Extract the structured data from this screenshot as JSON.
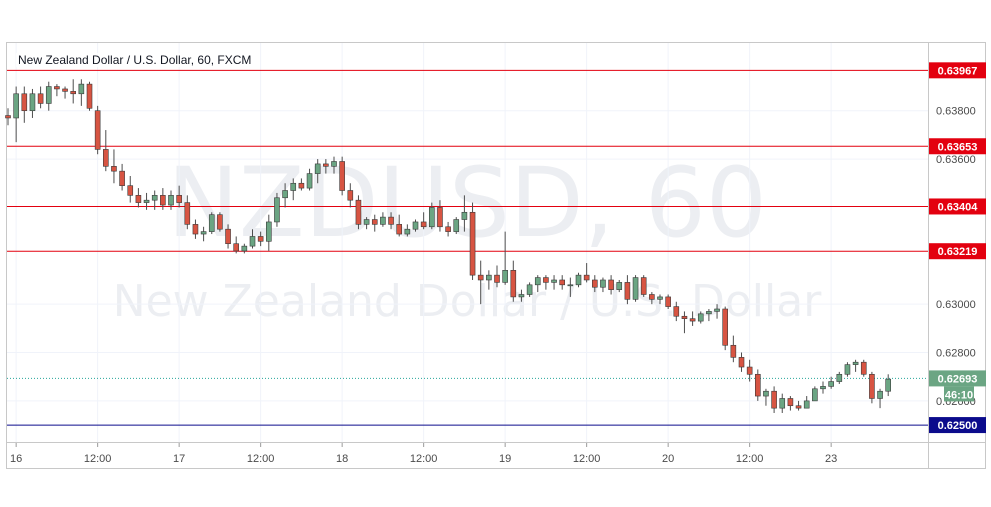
{
  "legend": "New Zealand Dollar / U.S. Dollar, 60, FXCM",
  "watermark": {
    "symbol": "NZDUSD, 60",
    "name": "New Zealand Dollar / U.S. Dollar"
  },
  "colors": {
    "up": "#6ba583",
    "down": "#d75442",
    "level": "#e3000f",
    "support": "#0b0b8c",
    "last": "#26a69a"
  },
  "chart_data": {
    "type": "candlestick",
    "title": "New Zealand Dollar / U.S. Dollar, 60, FXCM",
    "ylim": [
      0.6243,
      0.6408
    ],
    "y_ticks": [
      "0.63800",
      "0.63600",
      "0.63000",
      "0.62800",
      "0.62600"
    ],
    "x_ticks": [
      {
        "i": 1,
        "label": "16"
      },
      {
        "i": 11,
        "label": "12:00"
      },
      {
        "i": 21,
        "label": "17"
      },
      {
        "i": 31,
        "label": "12:00"
      },
      {
        "i": 41,
        "label": "18"
      },
      {
        "i": 51,
        "label": "12:00"
      },
      {
        "i": 61,
        "label": "19"
      },
      {
        "i": 71,
        "label": "12:00"
      },
      {
        "i": 81,
        "label": "20"
      },
      {
        "i": 91,
        "label": "12:00"
      },
      {
        "i": 101,
        "label": "23"
      }
    ],
    "levels": [
      {
        "value": 0.63967,
        "label": "0.63967",
        "kind": "resistance"
      },
      {
        "value": 0.63653,
        "label": "0.63653",
        "kind": "resistance"
      },
      {
        "value": 0.63404,
        "label": "0.63404",
        "kind": "resistance"
      },
      {
        "value": 0.63219,
        "label": "0.63219",
        "kind": "resistance"
      },
      {
        "value": 0.625,
        "label": "0.62500",
        "kind": "support"
      }
    ],
    "last_price": {
      "value": 0.62693,
      "label": "0.62693",
      "countdown": "46:10"
    },
    "candles": [
      [
        0.6378,
        0.6381,
        0.6374,
        0.6377
      ],
      [
        0.6377,
        0.639,
        0.6367,
        0.6387
      ],
      [
        0.6387,
        0.639,
        0.6375,
        0.638
      ],
      [
        0.638,
        0.6389,
        0.6377,
        0.6387
      ],
      [
        0.6387,
        0.639,
        0.6381,
        0.6383
      ],
      [
        0.6383,
        0.6392,
        0.638,
        0.639
      ],
      [
        0.639,
        0.6391,
        0.6386,
        0.6389
      ],
      [
        0.6389,
        0.639,
        0.6385,
        0.6388
      ],
      [
        0.6388,
        0.6393,
        0.6383,
        0.6387
      ],
      [
        0.6387,
        0.6393,
        0.6382,
        0.6391
      ],
      [
        0.6391,
        0.6392,
        0.638,
        0.6381
      ],
      [
        0.638,
        0.6382,
        0.6362,
        0.6364
      ],
      [
        0.6364,
        0.6372,
        0.6355,
        0.6357
      ],
      [
        0.6357,
        0.6364,
        0.635,
        0.6355
      ],
      [
        0.6355,
        0.6358,
        0.6347,
        0.6349
      ],
      [
        0.6349,
        0.6353,
        0.6342,
        0.6345
      ],
      [
        0.6345,
        0.6348,
        0.634,
        0.6342
      ],
      [
        0.6342,
        0.6346,
        0.6339,
        0.6343
      ],
      [
        0.6343,
        0.6347,
        0.6339,
        0.6345
      ],
      [
        0.6345,
        0.6348,
        0.6339,
        0.6341
      ],
      [
        0.6341,
        0.6347,
        0.6339,
        0.6345
      ],
      [
        0.6345,
        0.6349,
        0.634,
        0.6342
      ],
      [
        0.6342,
        0.6345,
        0.6331,
        0.6333
      ],
      [
        0.6333,
        0.6335,
        0.6327,
        0.6329
      ],
      [
        0.6329,
        0.6332,
        0.6326,
        0.633
      ],
      [
        0.633,
        0.6338,
        0.6329,
        0.6337
      ],
      [
        0.6337,
        0.6338,
        0.633,
        0.6331
      ],
      [
        0.6331,
        0.6333,
        0.6323,
        0.6325
      ],
      [
        0.6325,
        0.6328,
        0.6321,
        0.6322
      ],
      [
        0.6322,
        0.6325,
        0.6321,
        0.6324
      ],
      [
        0.6324,
        0.6331,
        0.6323,
        0.6328
      ],
      [
        0.6328,
        0.633,
        0.6324,
        0.6326
      ],
      [
        0.6326,
        0.6337,
        0.6322,
        0.6334
      ],
      [
        0.6334,
        0.6346,
        0.6332,
        0.6344
      ],
      [
        0.6344,
        0.635,
        0.634,
        0.6347
      ],
      [
        0.6347,
        0.6352,
        0.6343,
        0.635
      ],
      [
        0.635,
        0.6352,
        0.6347,
        0.6348
      ],
      [
        0.6348,
        0.6356,
        0.6347,
        0.6354
      ],
      [
        0.6354,
        0.636,
        0.635,
        0.6358
      ],
      [
        0.6358,
        0.636,
        0.6354,
        0.6357
      ],
      [
        0.6357,
        0.6361,
        0.6354,
        0.6359
      ],
      [
        0.6359,
        0.6361,
        0.6345,
        0.6347
      ],
      [
        0.6347,
        0.635,
        0.634,
        0.6343
      ],
      [
        0.6343,
        0.6345,
        0.6331,
        0.6333
      ],
      [
        0.6333,
        0.6336,
        0.6331,
        0.6335
      ],
      [
        0.6335,
        0.6337,
        0.633,
        0.6333
      ],
      [
        0.6333,
        0.6338,
        0.6332,
        0.6336
      ],
      [
        0.6336,
        0.6338,
        0.6331,
        0.6333
      ],
      [
        0.6333,
        0.6337,
        0.6328,
        0.6329
      ],
      [
        0.6329,
        0.6333,
        0.6328,
        0.6331
      ],
      [
        0.6331,
        0.6335,
        0.633,
        0.6334
      ],
      [
        0.6334,
        0.6338,
        0.6331,
        0.6332
      ],
      [
        0.6332,
        0.6342,
        0.6331,
        0.634
      ],
      [
        0.634,
        0.6343,
        0.633,
        0.6332
      ],
      [
        0.6332,
        0.6334,
        0.6328,
        0.633
      ],
      [
        0.633,
        0.6336,
        0.6329,
        0.6335
      ],
      [
        0.6335,
        0.6345,
        0.633,
        0.6338
      ],
      [
        0.6338,
        0.6342,
        0.631,
        0.6312
      ],
      [
        0.6312,
        0.6318,
        0.63,
        0.631
      ],
      [
        0.631,
        0.6314,
        0.6306,
        0.6312
      ],
      [
        0.6312,
        0.6316,
        0.6307,
        0.6309
      ],
      [
        0.6309,
        0.633,
        0.6308,
        0.6314
      ],
      [
        0.6314,
        0.6318,
        0.6301,
        0.6303
      ],
      [
        0.6303,
        0.6306,
        0.6301,
        0.6304
      ],
      [
        0.6304,
        0.6309,
        0.6303,
        0.6308
      ],
      [
        0.6308,
        0.6312,
        0.6305,
        0.6311
      ],
      [
        0.6311,
        0.6312,
        0.6306,
        0.6309
      ],
      [
        0.6309,
        0.6312,
        0.6306,
        0.631
      ],
      [
        0.631,
        0.6312,
        0.6306,
        0.6308
      ],
      [
        0.6308,
        0.6311,
        0.6303,
        0.6308
      ],
      [
        0.6308,
        0.6313,
        0.6307,
        0.6312
      ],
      [
        0.6312,
        0.6317,
        0.6309,
        0.631
      ],
      [
        0.631,
        0.6312,
        0.6305,
        0.6307
      ],
      [
        0.6307,
        0.6311,
        0.6305,
        0.631
      ],
      [
        0.631,
        0.6312,
        0.6304,
        0.6306
      ],
      [
        0.6306,
        0.631,
        0.6305,
        0.6309
      ],
      [
        0.6309,
        0.6312,
        0.63,
        0.6302
      ],
      [
        0.6302,
        0.6312,
        0.6301,
        0.6311
      ],
      [
        0.6311,
        0.6312,
        0.6303,
        0.6304
      ],
      [
        0.6304,
        0.6305,
        0.63,
        0.6302
      ],
      [
        0.6302,
        0.6304,
        0.63,
        0.6303
      ],
      [
        0.6303,
        0.6304,
        0.6298,
        0.6299
      ],
      [
        0.6299,
        0.6301,
        0.6293,
        0.6295
      ],
      [
        0.6295,
        0.6297,
        0.6288,
        0.6294
      ],
      [
        0.6294,
        0.6297,
        0.6291,
        0.6293
      ],
      [
        0.6293,
        0.6297,
        0.6292,
        0.6296
      ],
      [
        0.6296,
        0.6298,
        0.6293,
        0.6297
      ],
      [
        0.6297,
        0.63,
        0.6294,
        0.6298
      ],
      [
        0.6298,
        0.6299,
        0.6281,
        0.6283
      ],
      [
        0.6283,
        0.6287,
        0.6276,
        0.6278
      ],
      [
        0.6278,
        0.628,
        0.6272,
        0.6274
      ],
      [
        0.6274,
        0.6277,
        0.6268,
        0.6271
      ],
      [
        0.6271,
        0.6273,
        0.626,
        0.6262
      ],
      [
        0.6262,
        0.6265,
        0.6258,
        0.6264
      ],
      [
        0.6264,
        0.6266,
        0.6255,
        0.6257
      ],
      [
        0.6257,
        0.6263,
        0.6255,
        0.6261
      ],
      [
        0.6261,
        0.6262,
        0.6256,
        0.6258
      ],
      [
        0.6258,
        0.626,
        0.6256,
        0.6257
      ],
      [
        0.6257,
        0.6262,
        0.6257,
        0.626
      ],
      [
        0.626,
        0.6266,
        0.626,
        0.6265
      ],
      [
        0.6265,
        0.6268,
        0.6263,
        0.6266
      ],
      [
        0.6266,
        0.627,
        0.6265,
        0.6268
      ],
      [
        0.6268,
        0.6272,
        0.6267,
        0.6271
      ],
      [
        0.6271,
        0.6276,
        0.627,
        0.6275
      ],
      [
        0.6275,
        0.6277,
        0.6272,
        0.6276
      ],
      [
        0.6276,
        0.6277,
        0.627,
        0.6271
      ],
      [
        0.6271,
        0.6272,
        0.6259,
        0.6261
      ],
      [
        0.6261,
        0.6265,
        0.6257,
        0.6264
      ],
      [
        0.6264,
        0.6271,
        0.6262,
        0.6269
      ]
    ]
  }
}
